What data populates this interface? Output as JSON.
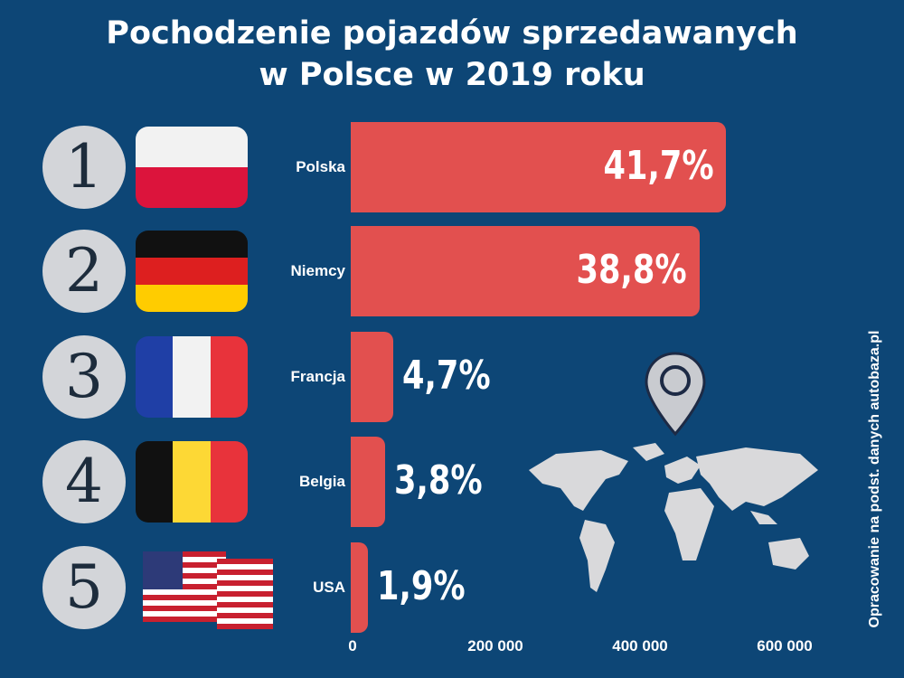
{
  "title_line1": "Pochodzenie pojazdów sprzedawanych",
  "title_line2": "w Polsce w 2019 roku",
  "source": "Opracowanie  na podst. danych autobaza.pl",
  "colors": {
    "background": "#0d4676",
    "bar": "#e2504f",
    "rank_circle": "#d3d5d9",
    "map": "#d9d9db"
  },
  "icons": [
    "location-pin-icon",
    "world-map-icon"
  ],
  "chart_data": {
    "type": "bar",
    "orientation": "horizontal",
    "title": "Pochodzenie pojazdów sprzedawanych w Polsce w 2019 roku",
    "categories": [
      "Polska",
      "Niemcy",
      "Francja",
      "Belgia",
      "USA"
    ],
    "ranks": [
      "1",
      "2",
      "3",
      "4",
      "5"
    ],
    "values": [
      519000,
      482000,
      59000,
      48000,
      24000
    ],
    "data_labels": [
      "41,7%",
      "38,8%",
      "4,7%",
      "3,8%",
      "1,9%"
    ],
    "xlim": [
      0,
      660000
    ],
    "xticks": [
      0,
      200000,
      400000,
      600000
    ],
    "xtick_labels": [
      "0",
      "200 000",
      "400 000",
      "600 000"
    ],
    "grid": false
  }
}
